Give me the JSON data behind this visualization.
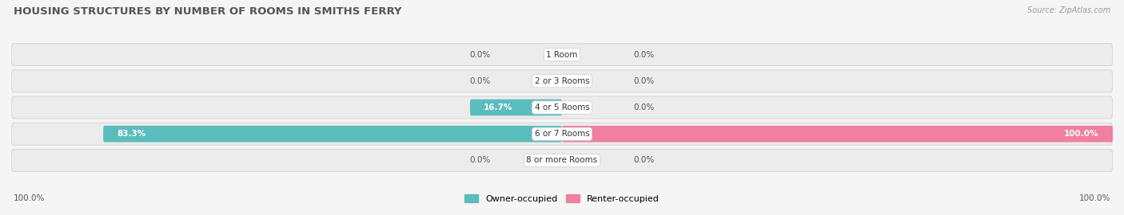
{
  "title": "HOUSING STRUCTURES BY NUMBER OF ROOMS IN SMITHS FERRY",
  "source": "Source: ZipAtlas.com",
  "categories": [
    "1 Room",
    "2 or 3 Rooms",
    "4 or 5 Rooms",
    "6 or 7 Rooms",
    "8 or more Rooms"
  ],
  "owner_values": [
    0.0,
    0.0,
    16.7,
    83.3,
    0.0
  ],
  "renter_values": [
    0.0,
    0.0,
    0.0,
    100.0,
    0.0
  ],
  "owner_color": "#5bbcbd",
  "renter_color": "#f07fa0",
  "row_bg_color": "#ececec",
  "row_border_color": "#d8d8d8",
  "owner_label": "Owner-occupied",
  "renter_label": "Renter-occupied",
  "title_color": "#555555",
  "text_color": "#555555",
  "source_color": "#999999",
  "background_color": "#f5f5f5",
  "label_fontsize": 7.5,
  "cat_fontsize": 7.5,
  "title_fontsize": 9.5
}
